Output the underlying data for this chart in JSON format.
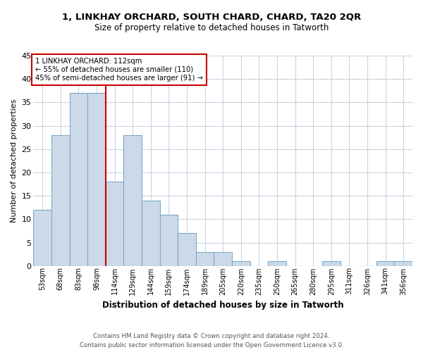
{
  "title": "1, LINKHAY ORCHARD, SOUTH CHARD, CHARD, TA20 2QR",
  "subtitle": "Size of property relative to detached houses in Tatworth",
  "xlabel": "Distribution of detached houses by size in Tatworth",
  "ylabel": "Number of detached properties",
  "footnote1": "Contains HM Land Registry data © Crown copyright and database right 2024.",
  "footnote2": "Contains public sector information licensed under the Open Government Licence v3.0.",
  "annotation_line1": "1 LINKHAY ORCHARD: 112sqm",
  "annotation_line2": "← 55% of detached houses are smaller (110)",
  "annotation_line3": "45% of semi-detached houses are larger (91) →",
  "bar_labels": [
    "53sqm",
    "68sqm",
    "83sqm",
    "98sqm",
    "114sqm",
    "129sqm",
    "144sqm",
    "159sqm",
    "174sqm",
    "189sqm",
    "205sqm",
    "220sqm",
    "235sqm",
    "250sqm",
    "265sqm",
    "280sqm",
    "295sqm",
    "311sqm",
    "326sqm",
    "341sqm",
    "356sqm"
  ],
  "bar_values": [
    12,
    28,
    37,
    37,
    18,
    28,
    14,
    11,
    7,
    3,
    3,
    1,
    0,
    1,
    0,
    0,
    1,
    0,
    0,
    1,
    1
  ],
  "bar_color": "#ccd9e8",
  "bar_edge_color": "#7aaac8",
  "vline_color": "#cc0000",
  "annotation_box_color": "#cc0000",
  "ylim": [
    0,
    45
  ],
  "yticks": [
    0,
    5,
    10,
    15,
    20,
    25,
    30,
    35,
    40,
    45
  ],
  "background_color": "#ffffff",
  "grid_color": "#c8d4e0"
}
